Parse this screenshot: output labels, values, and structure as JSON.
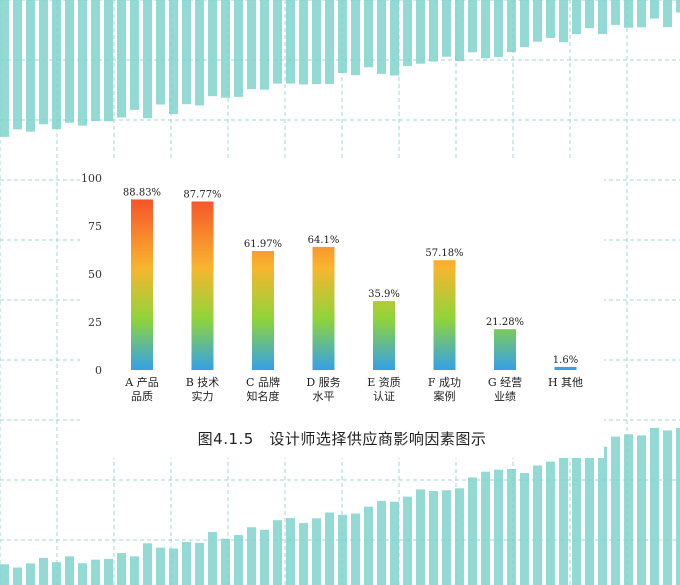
{
  "caption": "图4.1.5　设计师选择供应商影响因素图示",
  "colors": {
    "background_bars": "#7fd3cb",
    "grid": "#9fdad4",
    "bar_top": "#f7552a",
    "bar_mid": "#f8b52e",
    "bar_green": "#8fd43a",
    "bar_bottom": "#35a0e8"
  },
  "chart_data": {
    "type": "bar",
    "categories": [
      [
        "A 产品",
        "品质"
      ],
      [
        "B 技术",
        "实力"
      ],
      [
        "C 品牌",
        "知名度"
      ],
      [
        "D 服务",
        "水平"
      ],
      [
        "E 资质",
        "认证"
      ],
      [
        "F 成功",
        "案例"
      ],
      [
        "G 经营",
        "业绩"
      ],
      [
        "H 其他",
        ""
      ]
    ],
    "values": [
      88.83,
      87.77,
      61.97,
      64.1,
      35.9,
      57.18,
      21.28,
      1.6
    ],
    "data_labels": [
      "88.83%",
      "87.77%",
      "61.97%",
      "64.1%",
      "35.9%",
      "57.18%",
      "21.28%",
      "1.6%"
    ],
    "ylim": [
      0,
      100
    ],
    "yticks": [
      "0",
      "25",
      "50",
      "75",
      "100"
    ],
    "ytick_values": [
      0,
      25,
      50,
      75,
      100
    ],
    "grid": false,
    "legend": "none"
  }
}
